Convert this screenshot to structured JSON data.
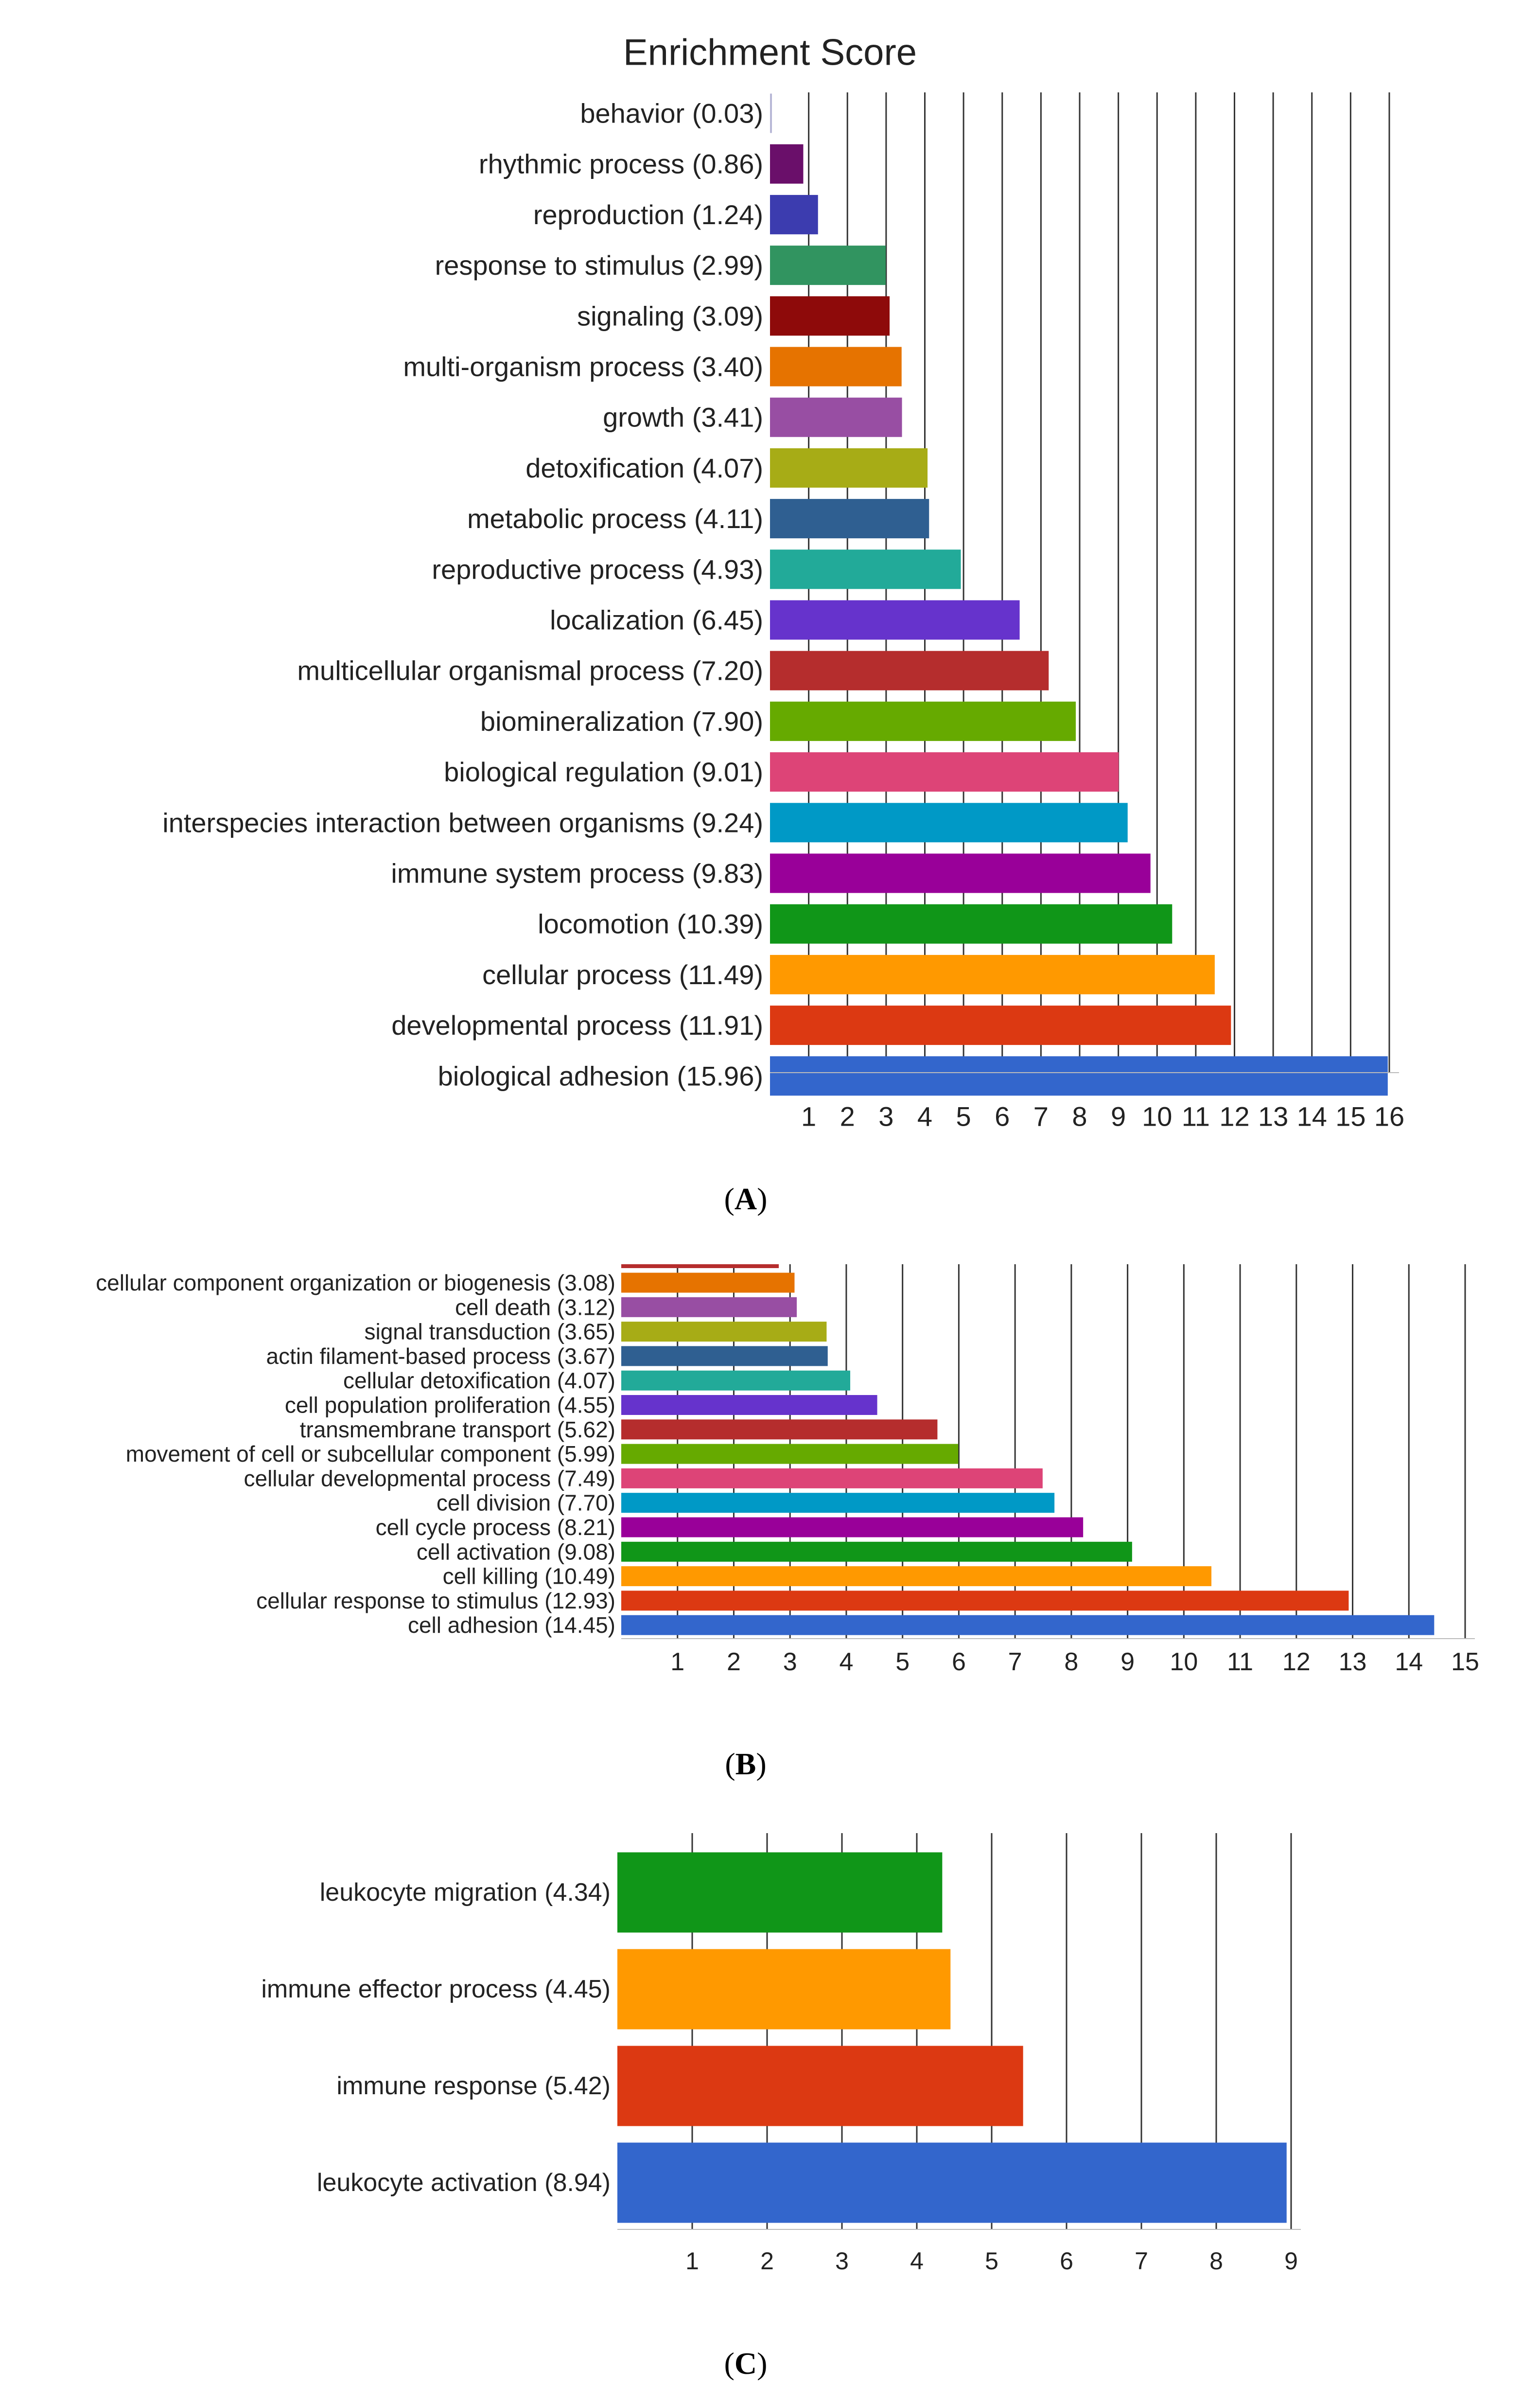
{
  "chart_data": [
    {
      "type": "bar",
      "orientation": "horizontal",
      "panel": "A",
      "title": "Enrichment Score",
      "categories": [
        "behavior (0.03)",
        "rhythmic process (0.86)",
        "reproduction (1.24)",
        "response to stimulus (2.99)",
        "signaling (3.09)",
        "multi-organism process (3.40)",
        "growth (3.41)",
        "detoxification (4.07)",
        "metabolic process (4.11)",
        "reproductive process (4.93)",
        "localization (6.45)",
        "multicellular organismal process (7.20)",
        "biomineralization (7.90)",
        "biological regulation (9.01)",
        "interspecies interaction between organisms (9.24)",
        "immune system process (9.83)",
        "locomotion (10.39)",
        "cellular process (11.49)",
        "developmental process (11.91)",
        "biological adhesion (15.96)"
      ],
      "values": [
        0.03,
        0.86,
        1.24,
        2.99,
        3.09,
        3.4,
        3.41,
        4.07,
        4.11,
        4.93,
        6.45,
        7.2,
        7.9,
        9.01,
        9.24,
        9.83,
        10.39,
        11.49,
        11.91,
        15.96
      ],
      "colors": [
        "#b7b7d6",
        "#6a0f6a",
        "#3c3caf",
        "#319460",
        "#8e0a0a",
        "#e67300",
        "#984ea3",
        "#a7ac16",
        "#2f5f91",
        "#22aa99",
        "#6633cc",
        "#b52d2d",
        "#66aa00",
        "#dd4477",
        "#0099c6",
        "#990099",
        "#109618",
        "#ff9900",
        "#dc3912",
        "#3366cc"
      ],
      "xticks": [
        "1",
        "2",
        "3",
        "4",
        "5",
        "6",
        "7",
        "8",
        "9",
        "10",
        "11",
        "12",
        "13",
        "14",
        "15",
        "16"
      ],
      "xlim": [
        0,
        16
      ],
      "grid": true,
      "caption": "(A)"
    },
    {
      "type": "bar",
      "orientation": "horizontal",
      "panel": "B",
      "categories": [
        "cellular component organization or biogenesis (3.08)",
        "cell death (3.12)",
        "signal transduction (3.65)",
        "actin filament-based process (3.67)",
        "cellular detoxification (4.07)",
        "cell population proliferation (4.55)",
        "transmembrane transport (5.62)",
        "movement of cell or subcellular component (5.99)",
        "cellular developmental process (7.49)",
        "cell division (7.70)",
        "cell cycle process (8.21)",
        "cell activation (9.08)",
        "cell killing (10.49)",
        "cellular response to stimulus (12.93)",
        "cell adhesion (14.45)"
      ],
      "values": [
        3.08,
        3.12,
        3.65,
        3.67,
        4.07,
        4.55,
        5.62,
        5.99,
        7.49,
        7.7,
        8.21,
        9.08,
        10.49,
        12.93,
        14.45
      ],
      "colors": [
        "#e67300",
        "#984ea3",
        "#a7ac16",
        "#2f5f91",
        "#22aa99",
        "#6633cc",
        "#b52d2d",
        "#66aa00",
        "#dd4477",
        "#0099c6",
        "#990099",
        "#109618",
        "#ff9900",
        "#dc3912",
        "#3366cc"
      ],
      "xticks": [
        "1",
        "2",
        "3",
        "4",
        "5",
        "6",
        "7",
        "8",
        "9",
        "10",
        "11",
        "12",
        "13",
        "14",
        "15"
      ],
      "xlim": [
        0,
        15
      ],
      "grid": true,
      "caption": "(B)"
    },
    {
      "type": "bar",
      "orientation": "horizontal",
      "panel": "C",
      "categories": [
        "leukocyte migration (4.34)",
        "immune effector process (4.45)",
        "immune response (5.42)",
        "leukocyte activation (8.94)"
      ],
      "values": [
        4.34,
        4.45,
        5.42,
        8.94
      ],
      "colors": [
        "#109618",
        "#ff9900",
        "#dc3912",
        "#3366cc"
      ],
      "xticks": [
        "1",
        "2",
        "3",
        "4",
        "5",
        "6",
        "7",
        "8",
        "9"
      ],
      "xlim": [
        0,
        9
      ],
      "grid": true,
      "caption": "(C)"
    }
  ]
}
